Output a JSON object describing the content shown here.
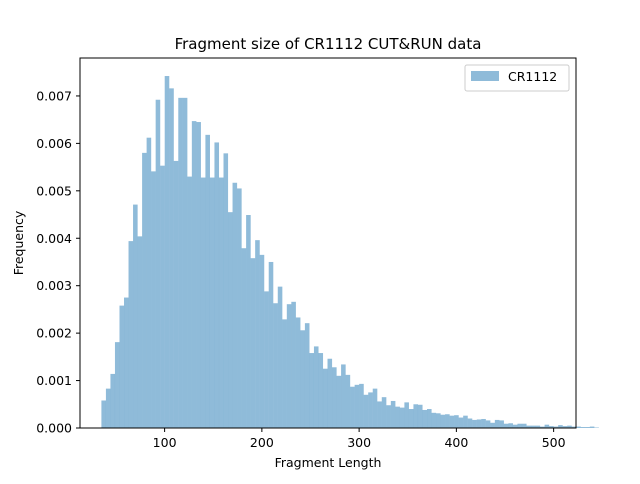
{
  "chart_data": {
    "type": "bar",
    "title": "Fragment size of CR1112 CUT&RUN data",
    "xlabel": "Fragment Length",
    "ylabel": "Frequency",
    "xlim": [
      13,
      523
    ],
    "ylim": [
      0,
      0.0078
    ],
    "x_ticks": [
      100,
      200,
      300,
      400,
      500
    ],
    "x_tick_labels": [
      "100",
      "200",
      "300",
      "400",
      "500"
    ],
    "y_ticks": [
      0,
      0.001,
      0.002,
      0.003,
      0.004,
      0.005,
      0.006,
      0.007
    ],
    "y_tick_labels": [
      "0.000",
      "0.001",
      "0.002",
      "0.003",
      "0.004",
      "0.005",
      "0.006",
      "0.007"
    ],
    "grid": false,
    "legend_position": "top-right",
    "bin_start": 35,
    "bin_width": 4.65,
    "series": [
      {
        "name": "CR1112",
        "color": "#1f77b4",
        "alpha": 0.5,
        "values": [
          0.00058,
          0.00083,
          0.00114,
          0.00181,
          0.00258,
          0.00275,
          0.00394,
          0.00471,
          0.00404,
          0.0058,
          0.00612,
          0.00541,
          0.00692,
          0.00553,
          0.00742,
          0.00716,
          0.00563,
          0.00696,
          0.00696,
          0.0053,
          0.00647,
          0.00645,
          0.00528,
          0.00618,
          0.00528,
          0.00602,
          0.00528,
          0.00579,
          0.00455,
          0.00517,
          0.00505,
          0.00379,
          0.00449,
          0.00358,
          0.00396,
          0.00365,
          0.00288,
          0.0035,
          0.00263,
          0.00298,
          0.00229,
          0.00261,
          0.00266,
          0.00233,
          0.00206,
          0.00221,
          0.00158,
          0.00172,
          0.00158,
          0.00125,
          0.00146,
          0.00128,
          0.0011,
          0.00134,
          0.00112,
          0.00087,
          0.00091,
          0.00093,
          0.0007,
          0.00075,
          0.00083,
          0.00056,
          0.00065,
          0.00048,
          0.00057,
          0.00045,
          0.00043,
          0.00054,
          0.0004,
          0.0005,
          0.00049,
          0.00038,
          0.0004,
          0.00032,
          0.00031,
          0.00028,
          0.00029,
          0.00026,
          0.00027,
          0.00022,
          0.00026,
          0.0002,
          0.00017,
          0.00018,
          0.00019,
          0.00016,
          0.00011,
          0.00017,
          0.00016,
          9e-05,
          0.0001,
          7e-05,
          9e-05,
          9e-05,
          5e-05,
          5e-05,
          5e-05,
          3e-05,
          7e-05,
          4e-05,
          3e-05,
          6e-05,
          4e-05,
          5e-05,
          3e-05,
          3e-05,
          2e-05,
          2e-05,
          3e-05,
          1e-05
        ]
      }
    ]
  }
}
